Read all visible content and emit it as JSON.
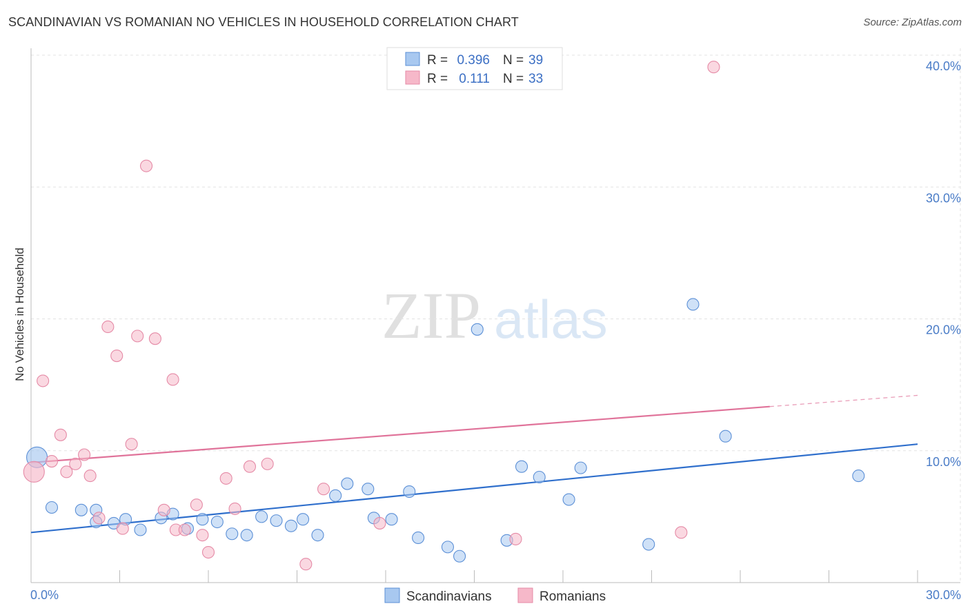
{
  "header": {
    "title": "SCANDINAVIAN VS ROMANIAN NO VEHICLES IN HOUSEHOLD CORRELATION CHART",
    "source": "Source: ZipAtlas.com"
  },
  "watermark": {
    "zip": "ZIP",
    "atlas": "atlas"
  },
  "legend": {
    "rows": [
      {
        "r_label": "R =",
        "r_value": "0.396",
        "n_label": "N =",
        "n_value": "39"
      },
      {
        "r_label": "R =",
        "r_value": "0.111",
        "n_label": "N =",
        "n_value": "33"
      }
    ]
  },
  "chart_data": {
    "type": "scatter",
    "title": "SCANDINAVIAN VS ROMANIAN NO VEHICLES IN HOUSEHOLD CORRELATION CHART",
    "xlabel": "",
    "ylabel": "No Vehicles in Household",
    "xlim": [
      0,
      30
    ],
    "ylim": [
      0,
      40
    ],
    "x_ticks": [
      "0.0%",
      "30.0%"
    ],
    "y_ticks": [
      {
        "value": 10,
        "label": "10.0%"
      },
      {
        "value": 20,
        "label": "20.0%"
      },
      {
        "value": 30,
        "label": "30.0%"
      },
      {
        "value": 40,
        "label": "40.0%"
      }
    ],
    "colors": {
      "scandinavians_fill": "#a8c8f0",
      "scandinavians_stroke": "#5b8fd6",
      "scandinavians_line": "#2f6fcc",
      "romanians_fill": "#f6b8c9",
      "romanians_stroke": "#e58aa6",
      "romanians_line": "#e0739a"
    },
    "series": [
      {
        "name": "Scandinavians",
        "r": 0.396,
        "n": 39,
        "trend": {
          "x": [
            0,
            30
          ],
          "y": [
            3.8,
            10.5
          ],
          "dashed_from": null
        },
        "points": [
          {
            "x": 0.2,
            "y": 9.5,
            "big": true
          },
          {
            "x": 0.7,
            "y": 5.7
          },
          {
            "x": 1.7,
            "y": 5.5
          },
          {
            "x": 2.2,
            "y": 5.5
          },
          {
            "x": 2.2,
            "y": 4.6
          },
          {
            "x": 2.8,
            "y": 4.5
          },
          {
            "x": 3.2,
            "y": 4.8
          },
          {
            "x": 3.7,
            "y": 4.0
          },
          {
            "x": 4.4,
            "y": 4.9
          },
          {
            "x": 4.8,
            "y": 5.2
          },
          {
            "x": 5.3,
            "y": 4.1
          },
          {
            "x": 5.8,
            "y": 4.8
          },
          {
            "x": 6.3,
            "y": 4.6
          },
          {
            "x": 6.8,
            "y": 3.7
          },
          {
            "x": 7.3,
            "y": 3.6
          },
          {
            "x": 7.8,
            "y": 5.0
          },
          {
            "x": 8.3,
            "y": 4.7
          },
          {
            "x": 8.8,
            "y": 4.3
          },
          {
            "x": 9.2,
            "y": 4.8
          },
          {
            "x": 9.7,
            "y": 3.6
          },
          {
            "x": 10.3,
            "y": 6.6
          },
          {
            "x": 10.7,
            "y": 7.5
          },
          {
            "x": 11.4,
            "y": 7.1
          },
          {
            "x": 11.6,
            "y": 4.9
          },
          {
            "x": 12.2,
            "y": 4.8
          },
          {
            "x": 12.8,
            "y": 6.9
          },
          {
            "x": 13.1,
            "y": 3.4
          },
          {
            "x": 14.1,
            "y": 2.7
          },
          {
            "x": 14.5,
            "y": 2.0
          },
          {
            "x": 15.1,
            "y": 19.2
          },
          {
            "x": 16.1,
            "y": 3.2
          },
          {
            "x": 16.6,
            "y": 8.8
          },
          {
            "x": 17.2,
            "y": 8.0
          },
          {
            "x": 18.2,
            "y": 6.3
          },
          {
            "x": 18.6,
            "y": 8.7
          },
          {
            "x": 20.9,
            "y": 2.9
          },
          {
            "x": 22.4,
            "y": 21.1
          },
          {
            "x": 23.5,
            "y": 11.1
          },
          {
            "x": 28.0,
            "y": 8.1
          }
        ]
      },
      {
        "name": "Romanians",
        "r": 0.111,
        "n": 33,
        "trend": {
          "x": [
            0,
            30
          ],
          "y": [
            9.1,
            14.2
          ],
          "dashed_from": 25
        },
        "points": [
          {
            "x": 0.1,
            "y": 8.4,
            "big": true
          },
          {
            "x": 0.4,
            "y": 15.3
          },
          {
            "x": 0.7,
            "y": 9.2
          },
          {
            "x": 1.0,
            "y": 11.2
          },
          {
            "x": 1.2,
            "y": 8.4
          },
          {
            "x": 1.5,
            "y": 9.0
          },
          {
            "x": 1.8,
            "y": 9.7
          },
          {
            "x": 2.0,
            "y": 8.1
          },
          {
            "x": 2.3,
            "y": 4.9
          },
          {
            "x": 2.6,
            "y": 19.4
          },
          {
            "x": 2.9,
            "y": 17.2
          },
          {
            "x": 3.1,
            "y": 4.1
          },
          {
            "x": 3.4,
            "y": 10.5
          },
          {
            "x": 3.6,
            "y": 18.7
          },
          {
            "x": 3.9,
            "y": 31.6
          },
          {
            "x": 4.2,
            "y": 18.5
          },
          {
            "x": 4.5,
            "y": 5.5
          },
          {
            "x": 4.8,
            "y": 15.4
          },
          {
            "x": 4.9,
            "y": 4.0
          },
          {
            "x": 5.2,
            "y": 4.0
          },
          {
            "x": 5.6,
            "y": 5.9
          },
          {
            "x": 5.8,
            "y": 3.6
          },
          {
            "x": 6.0,
            "y": 2.3
          },
          {
            "x": 6.6,
            "y": 7.9
          },
          {
            "x": 6.9,
            "y": 5.6
          },
          {
            "x": 7.4,
            "y": 8.8
          },
          {
            "x": 8.0,
            "y": 9.0
          },
          {
            "x": 9.3,
            "y": 1.4
          },
          {
            "x": 9.9,
            "y": 7.1
          },
          {
            "x": 11.8,
            "y": 4.5
          },
          {
            "x": 16.4,
            "y": 3.3
          },
          {
            "x": 22.0,
            "y": 3.8
          },
          {
            "x": 23.1,
            "y": 39.1
          }
        ]
      }
    ]
  }
}
